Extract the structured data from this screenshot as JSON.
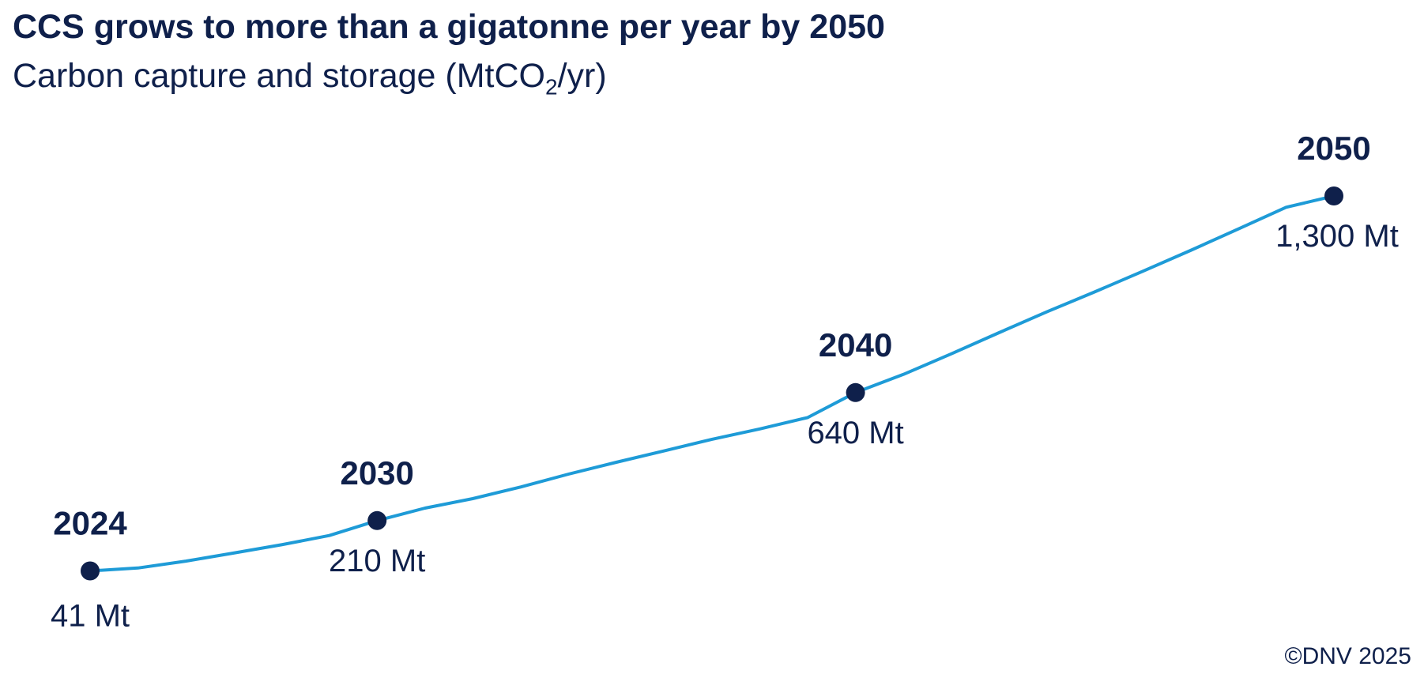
{
  "header": {
    "title": "CCS grows to more than a gigatonne per year by 2050",
    "subtitle_prefix": "Carbon capture and storage (MtCO",
    "subtitle_sub": "2",
    "subtitle_suffix": "/yr)"
  },
  "footer": {
    "copyright": "©DNV 2025"
  },
  "colors": {
    "line": "#1e9bd7",
    "marker": "#0f204b",
    "text": "#0f204b"
  },
  "chart_data": {
    "type": "line",
    "title": "CCS grows to more than a gigatonne per year by 2050",
    "subtitle": "Carbon capture and storage (MtCO2/yr)",
    "unit": "MtCO2/yr",
    "grid": false,
    "x_range": [
      2024,
      2050
    ],
    "y_range": [
      0,
      1300
    ],
    "series": [
      {
        "x": [
          2024,
          2025,
          2026,
          2027,
          2028,
          2029,
          2030,
          2031,
          2032,
          2033,
          2034,
          2035,
          2036,
          2037,
          2038,
          2039,
          2040,
          2041,
          2042,
          2043,
          2044,
          2045,
          2046,
          2047,
          2048,
          2049,
          2050
        ],
        "y": [
          41,
          51,
          74,
          101,
          129,
          160,
          210,
          252,
          284,
          323,
          366,
          406,
          444,
          483,
          518,
          556,
          640,
          701,
          770,
          841,
          911,
          978,
          1047,
          1117,
          1189,
          1262,
          1300
        ]
      }
    ],
    "markers": [
      {
        "x": 2024,
        "y": 41,
        "year_label": "2024",
        "value_label": "41 Mt"
      },
      {
        "x": 2030,
        "y": 210,
        "year_label": "2030",
        "value_label": "210 Mt"
      },
      {
        "x": 2040,
        "y": 640,
        "year_label": "2040",
        "value_label": "640 Mt"
      },
      {
        "x": 2050,
        "y": 1300,
        "year_label": "2050",
        "value_label": "1,300 Mt"
      }
    ]
  }
}
